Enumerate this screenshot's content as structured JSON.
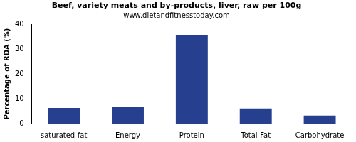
{
  "chart_data": {
    "type": "bar",
    "title": "Beef, variety meats and by-products, liver, raw per 100g",
    "subtitle": "www.dietandfitnesstoday.com",
    "y_label": "Percentage of RDA (%)",
    "categories": [
      "saturated-fat",
      "Energy",
      "Protein",
      "Total-Fat",
      "Carbohydrate"
    ],
    "values": [
      6.3,
      6.8,
      35.8,
      6.1,
      3.2
    ],
    "color": "#263f8f",
    "ylim": [
      0,
      40
    ],
    "yticks": [
      0,
      10,
      20,
      30,
      40
    ],
    "grid": false
  }
}
